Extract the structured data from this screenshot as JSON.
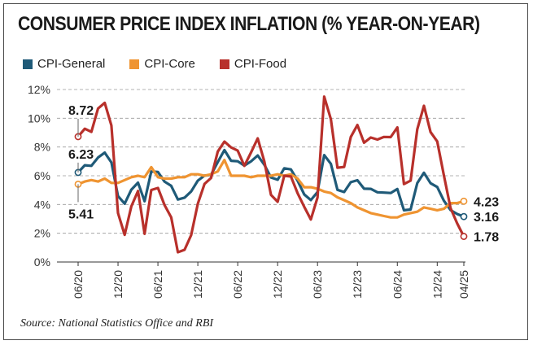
{
  "chart_data": {
    "type": "line",
    "title": "CONSUMER PRICE INDEX INFLATION (% YEAR-ON-YEAR)",
    "source": "Source: National Statistics Office and RBI",
    "xlabel": "",
    "ylabel": "",
    "ylim": [
      0,
      12
    ],
    "y_ticks": [
      "0%",
      "2%",
      "4%",
      "6%",
      "8%",
      "10%",
      "12%"
    ],
    "y_tick_values": [
      0,
      2,
      4,
      6,
      8,
      10,
      12
    ],
    "x_tick_labels": [
      "06/20",
      "12/20",
      "06/21",
      "12/21",
      "06/22",
      "12/22",
      "06/23",
      "12/23",
      "06/24",
      "12/24",
      "04/25"
    ],
    "x_tick_indices": [
      0,
      6,
      12,
      18,
      24,
      30,
      36,
      42,
      48,
      54,
      58
    ],
    "grid": "horizontal-dashed",
    "legend_position": "top-left",
    "months": [
      "06/20",
      "07/20",
      "08/20",
      "09/20",
      "10/20",
      "11/20",
      "12/20",
      "01/21",
      "02/21",
      "03/21",
      "04/21",
      "05/21",
      "06/21",
      "07/21",
      "08/21",
      "09/21",
      "10/21",
      "11/21",
      "12/21",
      "01/22",
      "02/22",
      "03/22",
      "04/22",
      "05/22",
      "06/22",
      "07/22",
      "08/22",
      "09/22",
      "10/22",
      "11/22",
      "12/22",
      "01/23",
      "02/23",
      "03/23",
      "04/23",
      "05/23",
      "06/23",
      "07/23",
      "08/23",
      "09/23",
      "10/23",
      "11/23",
      "12/23",
      "01/24",
      "02/24",
      "03/24",
      "04/24",
      "05/24",
      "06/24",
      "07/24",
      "08/24",
      "09/24",
      "10/24",
      "11/24",
      "12/24",
      "01/25",
      "02/25",
      "03/25",
      "04/25"
    ],
    "series": [
      {
        "name": "CPI-General",
        "color": "#1f5a78",
        "values": [
          6.23,
          6.73,
          6.69,
          7.27,
          7.61,
          6.93,
          4.59,
          4.06,
          5.03,
          5.52,
          4.23,
          6.3,
          6.26,
          5.59,
          5.3,
          4.35,
          4.48,
          4.91,
          5.66,
          6.01,
          6.07,
          6.95,
          7.79,
          7.04,
          7.01,
          6.71,
          7.0,
          7.41,
          6.77,
          5.88,
          5.72,
          6.52,
          6.44,
          5.66,
          4.7,
          4.31,
          4.87,
          7.44,
          6.83,
          5.02,
          4.87,
          5.55,
          5.69,
          5.1,
          5.09,
          4.85,
          4.83,
          4.8,
          5.08,
          3.6,
          3.65,
          5.49,
          6.21,
          5.48,
          5.22,
          4.26,
          3.61,
          3.34,
          3.16
        ],
        "end_label": "3.16",
        "start_label": "6.23"
      },
      {
        "name": "CPI-Core",
        "color": "#ef9431",
        "values": [
          5.41,
          5.6,
          5.7,
          5.6,
          5.8,
          5.5,
          5.5,
          5.7,
          5.9,
          6.0,
          5.9,
          6.6,
          5.9,
          5.8,
          5.8,
          5.9,
          5.9,
          6.1,
          6.1,
          6.0,
          6.1,
          6.3,
          7.1,
          6.0,
          6.0,
          6.0,
          5.9,
          6.0,
          6.0,
          6.0,
          6.1,
          6.0,
          6.1,
          5.8,
          5.2,
          5.2,
          5.1,
          4.9,
          4.8,
          4.5,
          4.3,
          4.1,
          3.8,
          3.6,
          3.4,
          3.3,
          3.2,
          3.1,
          3.1,
          3.3,
          3.4,
          3.5,
          3.8,
          3.7,
          3.6,
          3.7,
          4.1,
          4.1,
          4.23
        ],
        "end_label": "4.23",
        "start_label": "5.41"
      },
      {
        "name": "CPI-Food",
        "color": "#b8302b",
        "values": [
          8.72,
          9.27,
          9.05,
          10.68,
          11.07,
          9.5,
          3.41,
          1.89,
          3.87,
          4.94,
          1.96,
          5.01,
          5.15,
          3.96,
          3.11,
          0.68,
          0.85,
          1.87,
          4.05,
          5.43,
          5.85,
          7.68,
          8.38,
          7.97,
          7.75,
          6.69,
          7.62,
          8.6,
          7.01,
          4.67,
          4.19,
          6.0,
          5.95,
          4.79,
          3.84,
          2.96,
          4.49,
          11.51,
          9.94,
          6.56,
          6.61,
          8.7,
          9.53,
          8.3,
          8.66,
          8.52,
          8.7,
          8.69,
          9.36,
          5.42,
          5.66,
          9.24,
          10.87,
          9.04,
          8.39,
          6.02,
          3.75,
          2.69,
          1.78
        ],
        "end_label": "1.78",
        "start_label": "8.72"
      }
    ]
  }
}
